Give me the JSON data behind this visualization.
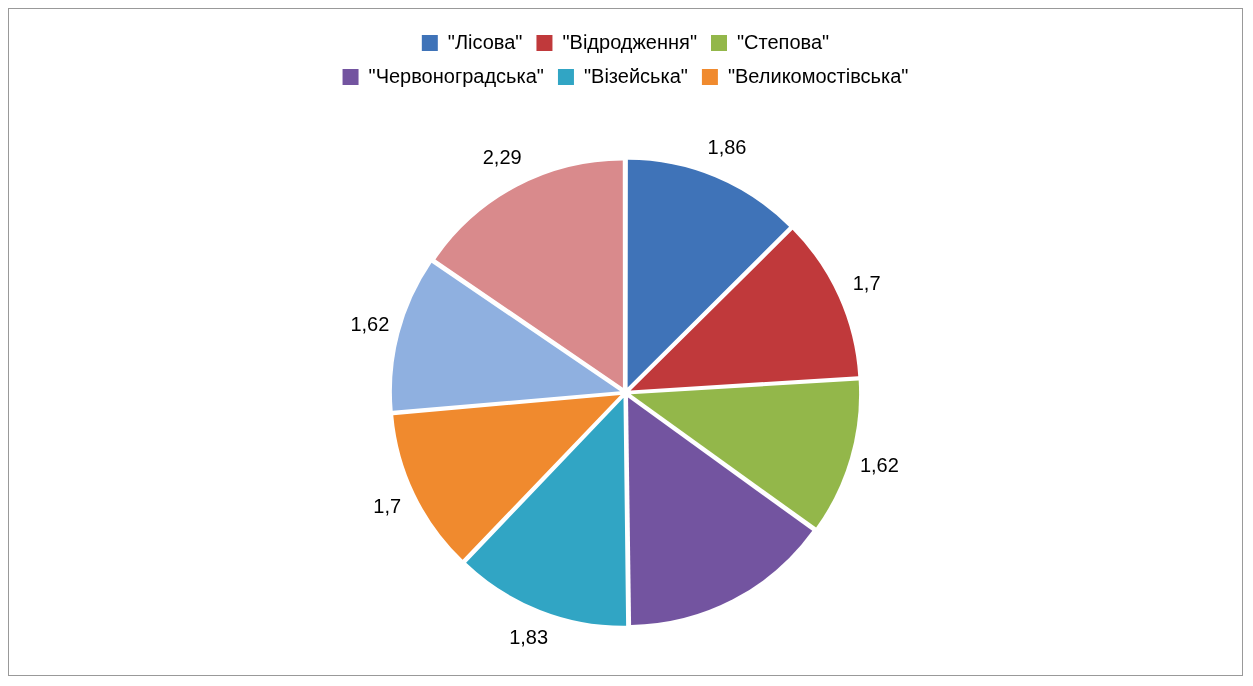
{
  "chart_data": {
    "type": "pie",
    "categories": [
      "\"Лісова\"",
      "\"Відродження\"",
      "\"Степова\"",
      "\"Червоноградська\"",
      "\"Візейська\"",
      "\"Великомостівська\"",
      null,
      null
    ],
    "values": [
      1.86,
      1.7,
      1.62,
      2.2,
      1.83,
      1.7,
      1.62,
      2.29
    ],
    "colors": [
      "#3f73b8",
      "#c0393b",
      "#93b74a",
      "#7354a0",
      "#31a5c4",
      "#f08a2e",
      "#8fb0e0",
      "#d98a8c"
    ],
    "value_labels": [
      "1,86",
      "1,7",
      "1,62",
      null,
      "1,83",
      "1,7",
      "1,62",
      "2,29"
    ],
    "legend": "top"
  }
}
